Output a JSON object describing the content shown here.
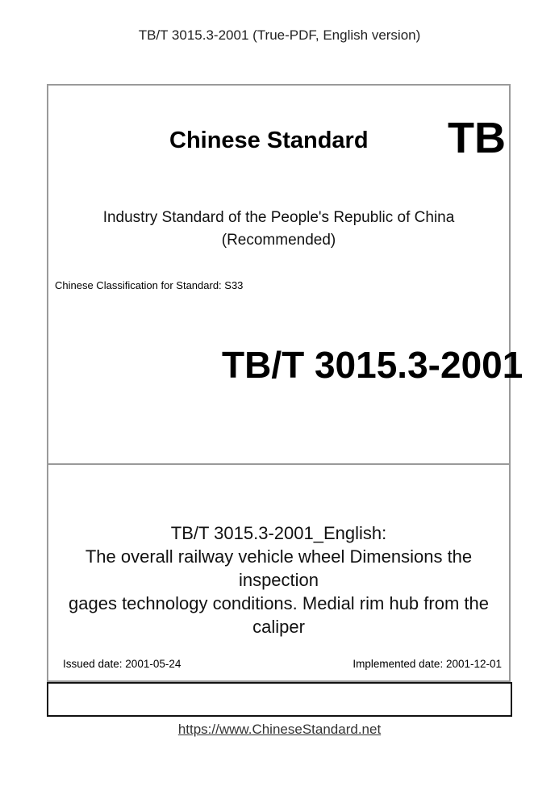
{
  "header": "TB/T 3015.3-2001 (True-PDF, English version)",
  "cover": {
    "brand_title": "Chinese Standard",
    "brand_code": "TB",
    "industry_line": "Industry Standard of the People's Republic of China",
    "recommended": "(Recommended)",
    "classification": "Chinese Classification for Standard: S33",
    "standard_number": "TB/T 3015.3-2001",
    "title_lines": [
      "TB/T 3015.3-2001_English:",
      "The overall railway vehicle wheel Dimensions the inspection",
      "gages technology conditions. Medial rim hub from the caliper"
    ],
    "issued_date": "Issued date: 2001-05-24",
    "implemented_date": "Implemented date: 2001-12-01"
  },
  "footer": {
    "url": "https://www.ChineseStandard.net"
  }
}
